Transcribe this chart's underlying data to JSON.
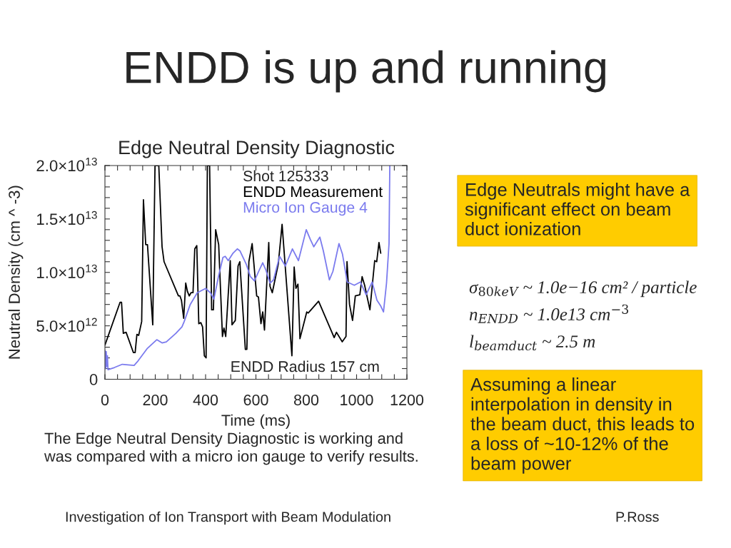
{
  "chart_data": {
    "type": "line",
    "title": "ENDD is up and running",
    "subtitle": "Edge Neutral Density Diagnostic",
    "xlabel": "Time (ms)",
    "ylabel": "Neutral Density (cm ^ -3)",
    "legend_title": "Shot 125333",
    "legend": "top right",
    "xlim": [
      0,
      1200
    ],
    "xticks": [
      0,
      {
        "value": 50,
        "label": null
      },
      {
        "value": 100,
        "label": null
      },
      {
        "value": 150,
        "label": null
      },
      200,
      {
        "value": 250,
        "label": null
      },
      {
        "value": 300,
        "label": null
      },
      {
        "value": 350,
        "label": null
      },
      400,
      {
        "value": 450,
        "label": null
      },
      {
        "value": 500,
        "label": null
      },
      {
        "value": 550,
        "label": null
      },
      600,
      {
        "value": 650,
        "label": null
      },
      {
        "value": 700,
        "label": null
      },
      {
        "value": 750,
        "label": null
      },
      800,
      {
        "value": 850,
        "label": null
      },
      {
        "value": 900,
        "label": null
      },
      {
        "value": 950,
        "label": null
      },
      1000,
      {
        "value": 1050,
        "label": null
      },
      {
        "value": 1100,
        "label": null
      },
      {
        "value": 1150,
        "label": null
      },
      1200
    ],
    "ylim": [
      0,
      20000000000000.0
    ],
    "yticks": [
      0,
      {
        "value": 1000000000000.0,
        "label": null
      },
      {
        "value": 2000000000000.0,
        "label": null
      },
      {
        "value": 3000000000000.0,
        "label": null
      },
      {
        "value": 4000000000000.0,
        "label": null
      },
      {
        "value": 5000000000000.0,
        "label": "5.0×10$^{12}$"
      },
      {
        "value": 6000000000000.0,
        "label": null
      },
      {
        "value": 7000000000000.0,
        "label": null
      },
      {
        "value": 8000000000000.0,
        "label": null
      },
      {
        "value": 9000000000000.0,
        "label": null
      },
      {
        "value": 10000000000000.0,
        "label": "1.0×10$^{13}$"
      },
      {
        "value": 11000000000000.0,
        "label": null
      },
      {
        "value": 12000000000000.0,
        "label": null
      },
      {
        "value": 13000000000000.0,
        "label": null
      },
      {
        "value": 14000000000000.0,
        "label": null
      },
      {
        "value": 15000000000000.0,
        "label": "1.5×10$^{13}$"
      },
      {
        "value": 16000000000000.0,
        "label": null
      },
      {
        "value": 17000000000000.0,
        "label": null
      },
      {
        "value": 18000000000000.0,
        "label": null
      },
      {
        "value": 19000000000000.0,
        "label": null
      },
      {
        "value": 20000000000000.0,
        "label": "2.0×10$^{13}$"
      }
    ],
    "series": [
      {
        "name": "ENDD Measurement",
        "color": "#000000",
        "x": [
          0,
          60,
          66,
          73,
          84,
          113,
          120,
          127,
          134,
          146,
          153,
          162,
          169,
          190,
          199,
          214,
          227,
          235,
          292,
          298,
          304,
          313,
          321,
          328,
          335,
          342,
          350,
          357,
          365,
          373,
          381,
          388,
          395,
          402,
          407,
          416,
          424,
          431,
          440,
          452,
          467,
          473,
          480,
          498,
          505,
          518,
          529,
          536,
          558,
          564,
          572,
          585,
          603,
          610,
          620,
          627,
          634,
          651,
          656,
          665,
          689,
          704,
          743,
          752,
          759,
          767,
          775,
          802,
          808,
          849,
          911,
          920,
          943,
          958,
          962,
          972,
          984,
          995,
          1013,
          1022,
          1032,
          1053,
          1072,
          1080,
          1089,
          1096
        ],
        "values": [
          3200000000000.0,
          7200000000000.0,
          7200000000000.0,
          4300000000000.0,
          4400000000000.0,
          2500000000000.0,
          2500000000000.0,
          4200000000000.0,
          4100000000000.0,
          5400000000000.0,
          16800000000000.0,
          12600000000000.0,
          12600000000000.0,
          5100000000000.0,
          20000000000000.0,
          20000000000000.0,
          12400000000000.0,
          11000000000000.0,
          7800000000000.0,
          7800000000000.0,
          7400000000000.0,
          5700000000000.0,
          9000000000000.0,
          8200000000000.0,
          7800000000000.0,
          8100000000000.0,
          8100000000000.0,
          12200000000000.0,
          12500000000000.0,
          5200000000000.0,
          5300000000000.0,
          4900000000000.0,
          2200000000000.0,
          2000000000000.0,
          20000000000000.0,
          20000000000000.0,
          6500000000000.0,
          6500000000000.0,
          14000000000000.0,
          12600000000000.0,
          4000000000000.0,
          4800000000000.0,
          4000000000000.0,
          11100000000000.0,
          5100000000000.0,
          5500000000000.0,
          10600000000000.0,
          11000000000000.0,
          2800000000000.0,
          2800000000000.0,
          11000000000000.0,
          12700000000000.0,
          7800000000000.0,
          7700000000000.0,
          5200000000000.0,
          6300000000000.0,
          4600000000000.0,
          12800000000000.0,
          8700000000000.0,
          8100000000000.0,
          10800000000000.0,
          14500000000000.0,
          2200000000000.0,
          10500000000000.0,
          8500000000000.0,
          8900000000000.0,
          3800000000000.0,
          6300000000000.0,
          6200000000000.0,
          7300000000000.0,
          3900000000000.0,
          4400000000000.0,
          3500000000000.0,
          4000000000000.0,
          11000000000000.0,
          7000000000000.0,
          5500000000000.0,
          7800000000000.0,
          7900000000000.0,
          9600000000000.0,
          8800000000000.0,
          6500000000000.0,
          11100000000000.0,
          11000000000000.0,
          12800000000000.0,
          11800000000000.0
        ]
      },
      {
        "name": "Micro Ion Gauge 4",
        "color": "#7b7bee",
        "x": [
          0,
          3,
          5,
          8,
          10,
          12,
          38,
          69,
          116,
          131,
          169,
          206,
          227,
          244,
          282,
          306,
          315,
          339,
          367,
          400,
          419,
          433,
          452,
          469,
          478,
          490,
          509,
          526,
          537,
          561,
          578,
          594,
          611,
          627,
          640,
          656,
          670,
          694,
          717,
          745,
          769,
          800,
          816,
          830,
          854,
          868,
          892,
          906,
          930,
          944,
          963,
          991,
          1015,
          1038,
          1062,
          1081,
          1095,
          1107,
          1119,
          1129,
          1132
        ],
        "values": [
          2700000000000.0,
          1000000000000.0,
          2600000000000.0,
          1200000000000.0,
          2200000000000.0,
          900000000000.0,
          1100000000000.0,
          1400000000000.0,
          1300000000000.0,
          1700000000000.0,
          2900000000000.0,
          3700000000000.0,
          3400000000000.0,
          3500000000000.0,
          4300000000000.0,
          4900000000000.0,
          5400000000000.0,
          7000000000000.0,
          8100000000000.0,
          8500000000000.0,
          8100000000000.0,
          7500000000000.0,
          9700000000000.0,
          11400000000000.0,
          11500000000000.0,
          11100000000000.0,
          11800000000000.0,
          12200000000000.0,
          12000000000000.0,
          10800000000000.0,
          9600000000000.0,
          9200000000000.0,
          10100000000000.0,
          10900000000000.0,
          10200000000000.0,
          9000000000000.0,
          9300000000000.0,
          11500000000000.0,
          10600000000000.0,
          12200000000000.0,
          11100000000000.0,
          14000000000000.0,
          13100000000000.0,
          12400000000000.0,
          13300000000000.0,
          12000000000000.0,
          9300000000000.0,
          10100000000000.0,
          12700000000000.0,
          11700000000000.0,
          9100000000000.0,
          8800000000000.0,
          9100000000000.0,
          7900000000000.0,
          9100000000000.0,
          7400000000000.0,
          6900000000000.0,
          6300000000000.0,
          9000000000000.0,
          12700000000000.0,
          20000000000000.0
        ]
      }
    ],
    "annotations": [
      "ENDD Radius 157 cm",
      "Edge Neutrals might have a\nsignificant effect on beam\nduct ionization",
      "σ$_{80keV}$ ~ 1.0e−16 cm² / particle",
      "n$_{ENDD}$ ~ 1.0e13 cm$^{−3}$",
      "l$_{beamduct}$ ~ 2.5 m",
      "Assuming a linear\ninterpolation in density in\nthe beam duct, this leads to\na loss of ~10-12% of the\nbeam power",
      "The Edge Neutral Density Diagnostic is working and\nwas compared with a micro ion gauge to verify results.",
      "Investigation of Ion Transport with Beam Modulation",
      "P.Ross"
    ]
  }
}
